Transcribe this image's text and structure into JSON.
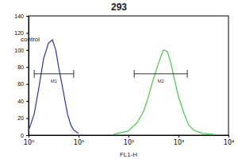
{
  "chart_data": {
    "type": "line",
    "title": "293",
    "x_label": "FL1-H",
    "log": "x",
    "x": [
      1,
      1.3,
      1.6,
      2,
      2.5,
      3,
      3.5,
      4,
      5,
      6,
      7,
      8,
      10,
      50,
      100,
      150,
      200,
      250,
      300,
      400,
      500,
      600,
      700,
      800,
      1000,
      1300,
      1600,
      2000,
      3000,
      5000
    ],
    "series": [
      {
        "name": "control",
        "color": "#2a36a8",
        "values": [
          5,
          25,
          55,
          90,
          108,
          112,
          100,
          80,
          50,
          25,
          12,
          6,
          2,
          null,
          null,
          null,
          null,
          null,
          null,
          null,
          null,
          null,
          null,
          null,
          null,
          null,
          null,
          null,
          null,
          null
        ]
      },
      {
        "color": "#46cc46",
        "values": [
          null,
          null,
          null,
          null,
          null,
          null,
          null,
          null,
          null,
          null,
          null,
          null,
          null,
          1,
          5,
          15,
          28,
          45,
          62,
          85,
          100,
          98,
          85,
          70,
          45,
          25,
          12,
          6,
          2,
          1
        ]
      }
    ],
    "gates": [
      {
        "label": "M1",
        "range": [
          1.3,
          8
        ],
        "y": 72
      },
      {
        "label": "M2",
        "range": [
          130,
          1500
        ],
        "y": 72
      }
    ],
    "xlim": [
      1,
      10000
    ],
    "xticks": [
      {
        "value": 1,
        "label": "10⁰"
      },
      {
        "value": 10,
        "label": "10¹"
      },
      {
        "value": 100,
        "label": "10²"
      },
      {
        "value": 1000,
        "label": "10³"
      },
      {
        "value": 10000,
        "label": "10⁴"
      }
    ],
    "ylim": [
      0,
      140
    ],
    "yticks": [
      0,
      20,
      40,
      60,
      80,
      100,
      120,
      140
    ],
    "grid": false
  }
}
